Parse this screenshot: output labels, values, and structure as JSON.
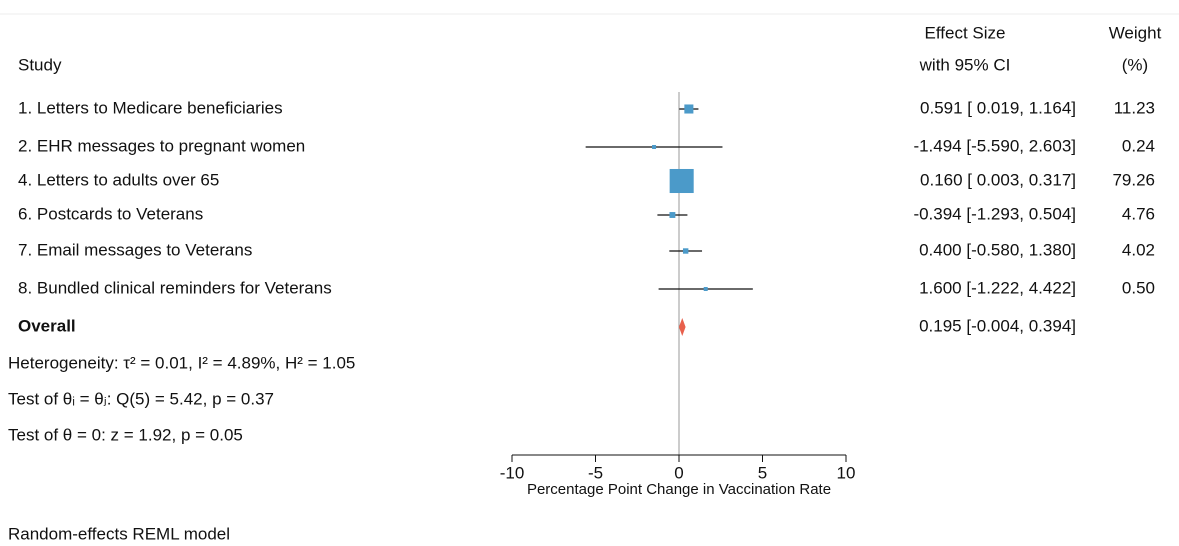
{
  "chart_data": {
    "type": "forest",
    "study_header": "Study",
    "effect_header": [
      "Effect Size",
      "with 95% CI"
    ],
    "weight_header": [
      "Weight",
      "(%)"
    ],
    "categories": [
      "1. Letters to Medicare beneficiaries",
      "2. EHR messages to pregnant women",
      "4. Letters to adults over 65",
      "6. Postcards to Veterans",
      "7. Email messages to Veterans",
      "8. Bundled clinical reminders for Veterans"
    ],
    "values": [
      0.591,
      -1.494,
      0.16,
      -0.394,
      0.4,
      1.6
    ],
    "lower": [
      0.019,
      -5.59,
      0.003,
      -1.293,
      -0.58,
      -1.222
    ],
    "upper": [
      1.164,
      2.603,
      0.317,
      0.504,
      1.38,
      4.422
    ],
    "value_labels": [
      "0.591 [ 0.019, 1.164]",
      "-1.494 [-5.590, 2.603]",
      "0.160 [ 0.003, 0.317]",
      "-0.394 [-1.293, 0.504]",
      "0.400 [-0.580, 1.380]",
      "1.600 [-1.222, 4.422]"
    ],
    "weights": [
      11.23,
      0.24,
      79.26,
      4.76,
      4.02,
      0.5
    ],
    "weight_labels": [
      "11.23",
      "0.24",
      "79.26",
      "4.76",
      "4.02",
      "0.50"
    ],
    "color": "#4b9ac9",
    "overall": {
      "label": "Overall",
      "value": 0.195,
      "lower": -0.004,
      "upper": 0.394,
      "value_label": "0.195 [-0.004, 0.394]",
      "color": "#e8604c"
    },
    "notes": [
      "Heterogeneity: τ² = 0.01, I² = 4.89%, H² = 1.05",
      "Test of θᵢ = θⱼ: Q(5) = 5.42, p = 0.37",
      "Test of θ = 0: z = 1.92, p = 0.05"
    ],
    "xlabel": "Percentage Point Change in Vaccination Rate",
    "xlim": [
      -10,
      10
    ],
    "xticks": [
      -10,
      -5,
      0,
      5,
      10
    ],
    "footnote": "Random-effects REML model"
  }
}
